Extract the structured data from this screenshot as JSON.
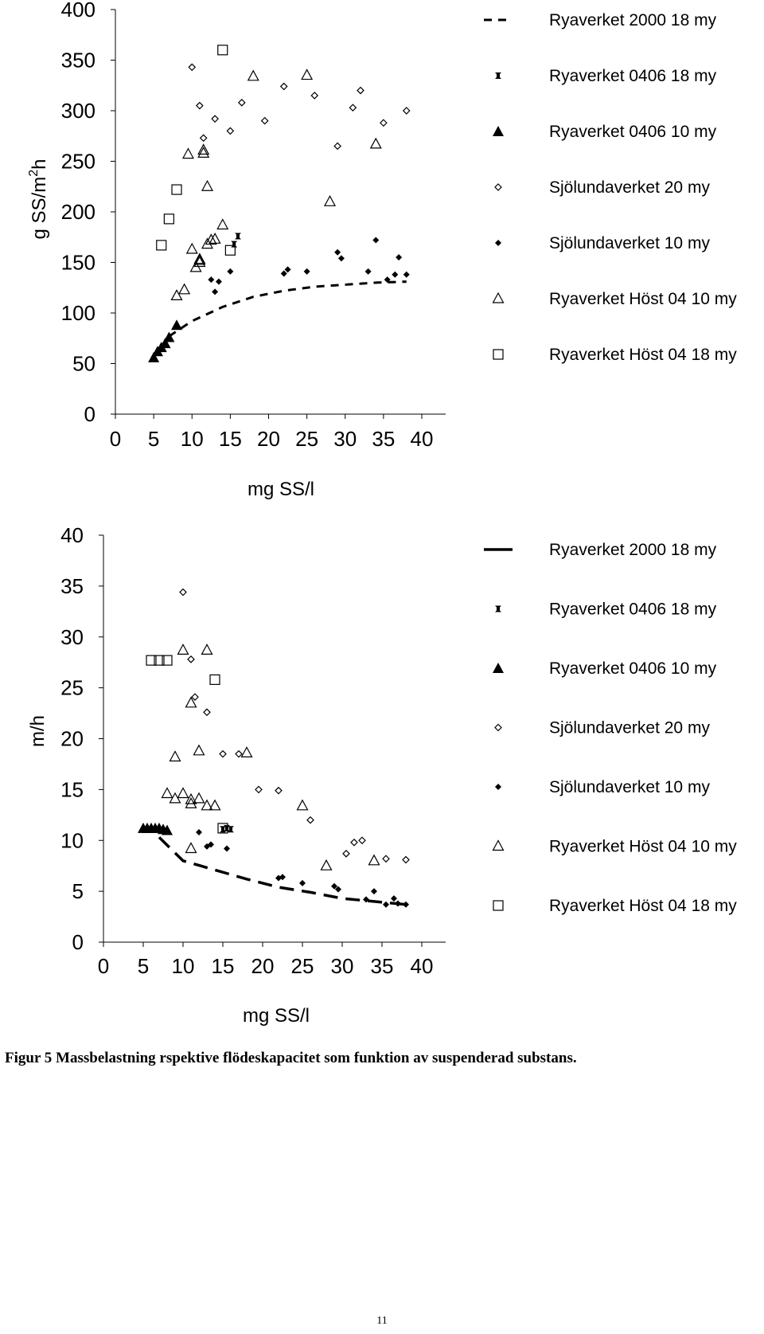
{
  "caption": "Figur 5 Massbelastning  rspektive flödeskapacitet som funktion av suspenderad substans.",
  "page_number": "11",
  "chart_data": [
    {
      "type": "scatter",
      "ylabel": "g SS/m²h",
      "ylabel_main": "g SS/m",
      "ylabel_sup": "2",
      "ylabel_tail": "h",
      "xlabel": "mg SS/l",
      "xlim": [
        0,
        40
      ],
      "ylim": [
        0,
        400
      ],
      "xticks": [
        "0",
        "5",
        "10",
        "15",
        "20",
        "25",
        "30",
        "35",
        "40"
      ],
      "yticks": [
        "0",
        "50",
        "100",
        "150",
        "200",
        "250",
        "300",
        "350",
        "400"
      ],
      "grid": false,
      "legend_position": "right",
      "series": [
        {
          "name": "Ryaverket 2000 18 my",
          "marker": "dash-line",
          "color": "#000000",
          "x": [
            7,
            10,
            14,
            18,
            22,
            26,
            30,
            34,
            38
          ],
          "y": [
            77,
            92,
            106,
            116,
            122,
            126,
            128,
            130,
            131
          ]
        },
        {
          "name": "Ryaverket 0406 18 my",
          "marker": "bowtie",
          "color": "#000000",
          "x": [
            15.5,
            16
          ],
          "y": [
            168,
            176
          ]
        },
        {
          "name": "Ryaverket 0406 10 my",
          "marker": "filled-triangle",
          "color": "#000000",
          "x": [
            5,
            5.5,
            6,
            6.5,
            7,
            8
          ],
          "y": [
            56,
            62,
            66,
            70,
            76,
            88
          ]
        },
        {
          "name": "Sjölundaverket 20 my",
          "marker": "open-diamond",
          "color": "#000000",
          "x": [
            10,
            11,
            11.5,
            13,
            15,
            16.5,
            19.5,
            22,
            26,
            29,
            31,
            32,
            35,
            38
          ],
          "y": [
            343,
            305,
            273,
            292,
            280,
            308,
            290,
            324,
            315,
            265,
            303,
            320,
            288,
            300
          ]
        },
        {
          "name": "Sjölundaverket 10 my",
          "marker": "filled-diamond",
          "color": "#000000",
          "x": [
            12.5,
            13,
            13.5,
            15,
            22,
            22.5,
            25,
            29,
            29.5,
            33,
            34,
            35.5,
            36.5,
            37,
            38
          ],
          "y": [
            133,
            121,
            131,
            141,
            139,
            143,
            141,
            160,
            154,
            141,
            172,
            133,
            138,
            155,
            138
          ]
        },
        {
          "name": "Ryaverket Höst 04 10 my",
          "marker": "open-triangle",
          "color": "#000000",
          "x": [
            8,
            9,
            9.5,
            10,
            10.5,
            11,
            11,
            11,
            11.5,
            11.5,
            12,
            12,
            12.5,
            13,
            14,
            18,
            25,
            28,
            34
          ],
          "y": [
            117,
            123,
            257,
            163,
            145,
            150,
            152,
            153,
            258,
            261,
            225,
            168,
            172,
            173,
            187,
            334,
            335,
            210,
            267
          ]
        },
        {
          "name": "Ryaverket Höst 04 18 my",
          "marker": "open-square",
          "color": "#000000",
          "x": [
            6,
            7,
            8,
            14,
            15
          ],
          "y": [
            167,
            193,
            222,
            360,
            162
          ]
        }
      ]
    },
    {
      "type": "scatter",
      "ylabel": "m/h",
      "xlabel": "mg SS/l",
      "xlim": [
        0,
        40
      ],
      "ylim": [
        0,
        40
      ],
      "xticks": [
        "0",
        "5",
        "10",
        "15",
        "20",
        "25",
        "30",
        "35",
        "40"
      ],
      "yticks": [
        "0",
        "5",
        "10",
        "15",
        "20",
        "25",
        "30",
        "35",
        "40"
      ],
      "grid": false,
      "legend_position": "right",
      "series": [
        {
          "name": "Ryaverket 2000 18 my",
          "marker": "dash-line",
          "color": "#000000",
          "x": [
            7,
            10,
            14,
            18,
            22,
            26,
            30,
            34,
            38
          ],
          "y": [
            10.3,
            8.0,
            7.1,
            6.2,
            5.4,
            4.9,
            4.3,
            4.0,
            3.7
          ]
        },
        {
          "name": "Ryaverket 0406 18 my",
          "marker": "bowtie",
          "color": "#000000",
          "x": [
            15,
            15.5,
            16
          ],
          "y": [
            11.1,
            11.2,
            11.1
          ]
        },
        {
          "name": "Ryaverket 0406 10 my",
          "marker": "filled-triangle",
          "color": "#000000",
          "x": [
            5,
            5.5,
            6,
            6.5,
            7,
            7.5,
            8
          ],
          "y": [
            11.2,
            11.2,
            11.2,
            11.2,
            11.2,
            11.1,
            11.0
          ]
        },
        {
          "name": "Sjölundaverket 20 my",
          "marker": "open-diamond",
          "color": "#000000",
          "x": [
            10,
            11,
            11.5,
            13,
            15,
            17,
            19.5,
            22,
            26,
            30.5,
            31.5,
            32.5,
            35.5,
            38
          ],
          "y": [
            34.4,
            27.8,
            24.1,
            22.6,
            18.5,
            18.5,
            15.0,
            14.9,
            12.0,
            8.7,
            9.8,
            10.0,
            8.2,
            8.1
          ]
        },
        {
          "name": "Sjölundaverket 10 my",
          "marker": "filled-diamond",
          "color": "#000000",
          "x": [
            12,
            13,
            13.5,
            15.5,
            22,
            22.5,
            25,
            29,
            29.5,
            33,
            34,
            35.5,
            36.5,
            37,
            38
          ],
          "y": [
            10.8,
            9.4,
            9.6,
            9.2,
            6.3,
            6.4,
            5.8,
            5.5,
            5.2,
            4.2,
            5.0,
            3.7,
            4.3,
            3.8,
            3.7
          ]
        },
        {
          "name": "Ryaverket Höst 04 10 my",
          "marker": "open-triangle",
          "color": "#000000",
          "x": [
            8,
            9,
            9,
            10,
            10,
            11,
            11,
            11,
            11,
            12,
            12,
            13,
            13,
            14,
            18,
            25,
            28,
            34
          ],
          "y": [
            14.6,
            14.1,
            18.2,
            14.6,
            28.7,
            9.2,
            14.0,
            13.6,
            23.5,
            18.8,
            14.1,
            28.7,
            13.4,
            13.4,
            18.6,
            13.4,
            7.5,
            8.0
          ]
        },
        {
          "name": "Ryaverket Höst 04 18 my",
          "marker": "open-square",
          "color": "#000000",
          "x": [
            6,
            7,
            8,
            14,
            15
          ],
          "y": [
            27.7,
            27.7,
            27.7,
            25.8,
            11.2
          ]
        }
      ]
    }
  ]
}
